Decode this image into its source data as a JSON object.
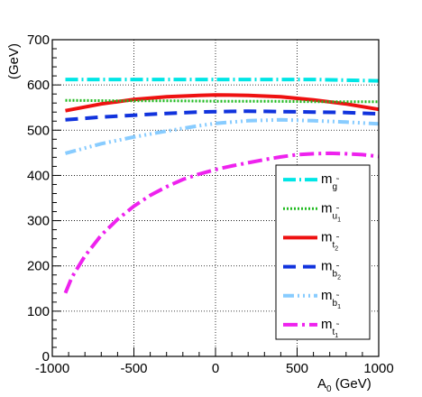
{
  "chart_data": {
    "type": "line",
    "title": "",
    "xlabel": "A",
    "xlabel_sub": "0",
    "xlabel_unit": " (GeV)",
    "ylabel": "(GeV)",
    "xlim": [
      -1000,
      1000
    ],
    "ylim": [
      0,
      700
    ],
    "xticks": [
      -1000,
      -500,
      0,
      500,
      1000
    ],
    "xtick_labels": [
      "-1000",
      "-500",
      "0",
      "500",
      "1000"
    ],
    "yticks": [
      0,
      100,
      200,
      300,
      400,
      500,
      600,
      700
    ],
    "ytick_labels": [
      "0",
      "100",
      "200",
      "300",
      "400",
      "500",
      "600",
      "700"
    ],
    "grid": true,
    "legend_position": "right",
    "series": [
      {
        "name": "m",
        "sub": "g",
        "tilde": true,
        "color": "#00e6e6",
        "dash": "14,4,2,4",
        "width": 4,
        "x": [
          -920,
          -600,
          -300,
          0,
          300,
          600,
          1000
        ],
        "y": [
          612,
          612,
          612,
          612,
          612,
          612,
          609
        ]
      },
      {
        "name": "m",
        "sub": "u",
        "subsub": "1",
        "tilde": true,
        "color": "#22bb22",
        "dash": "2,2",
        "width": 3,
        "x": [
          -920,
          -600,
          -300,
          0,
          300,
          600,
          1000
        ],
        "y": [
          566,
          565,
          565,
          564,
          564,
          563,
          563
        ]
      },
      {
        "name": "m",
        "sub": "t",
        "subsub": "2",
        "tilde": true,
        "color": "#ee1111",
        "dash": "",
        "width": 4,
        "x": [
          -920,
          -700,
          -500,
          -300,
          -100,
          0,
          200,
          400,
          600,
          800,
          1000
        ],
        "y": [
          543,
          558,
          568,
          574,
          577,
          578,
          577,
          574,
          567,
          558,
          546
        ]
      },
      {
        "name": "m",
        "sub": "b",
        "subsub": "2",
        "tilde": true,
        "color": "#1133dd",
        "dash": "14,8",
        "width": 4,
        "x": [
          -920,
          -700,
          -500,
          -300,
          -100,
          0,
          200,
          400,
          600,
          800,
          1000
        ],
        "y": [
          523,
          529,
          533,
          537,
          540,
          541,
          542,
          541,
          540,
          539,
          536
        ]
      },
      {
        "name": "m",
        "sub": "b",
        "subsub": "1",
        "tilde": true,
        "color": "#88ccff",
        "dash": "12,4,2,4,2,4,2,4",
        "width": 4,
        "x": [
          -920,
          -700,
          -500,
          -300,
          -100,
          0,
          200,
          400,
          600,
          800,
          1000
        ],
        "y": [
          449,
          470,
          485,
          498,
          510,
          515,
          521,
          523,
          521,
          518,
          514
        ]
      },
      {
        "name": "m",
        "sub": "t",
        "subsub": "1",
        "tilde": true,
        "color": "#ee22ee",
        "dash": "16,5,3,5",
        "width": 4,
        "x": [
          -920,
          -880,
          -800,
          -700,
          -600,
          -500,
          -400,
          -300,
          -200,
          -100,
          0,
          100,
          200,
          300,
          400,
          500,
          600,
          700,
          800,
          900,
          1000
        ],
        "y": [
          140,
          175,
          222,
          268,
          303,
          332,
          356,
          375,
          391,
          403,
          413,
          421,
          428,
          435,
          441,
          446,
          448,
          449,
          448,
          446,
          442
        ]
      }
    ]
  }
}
